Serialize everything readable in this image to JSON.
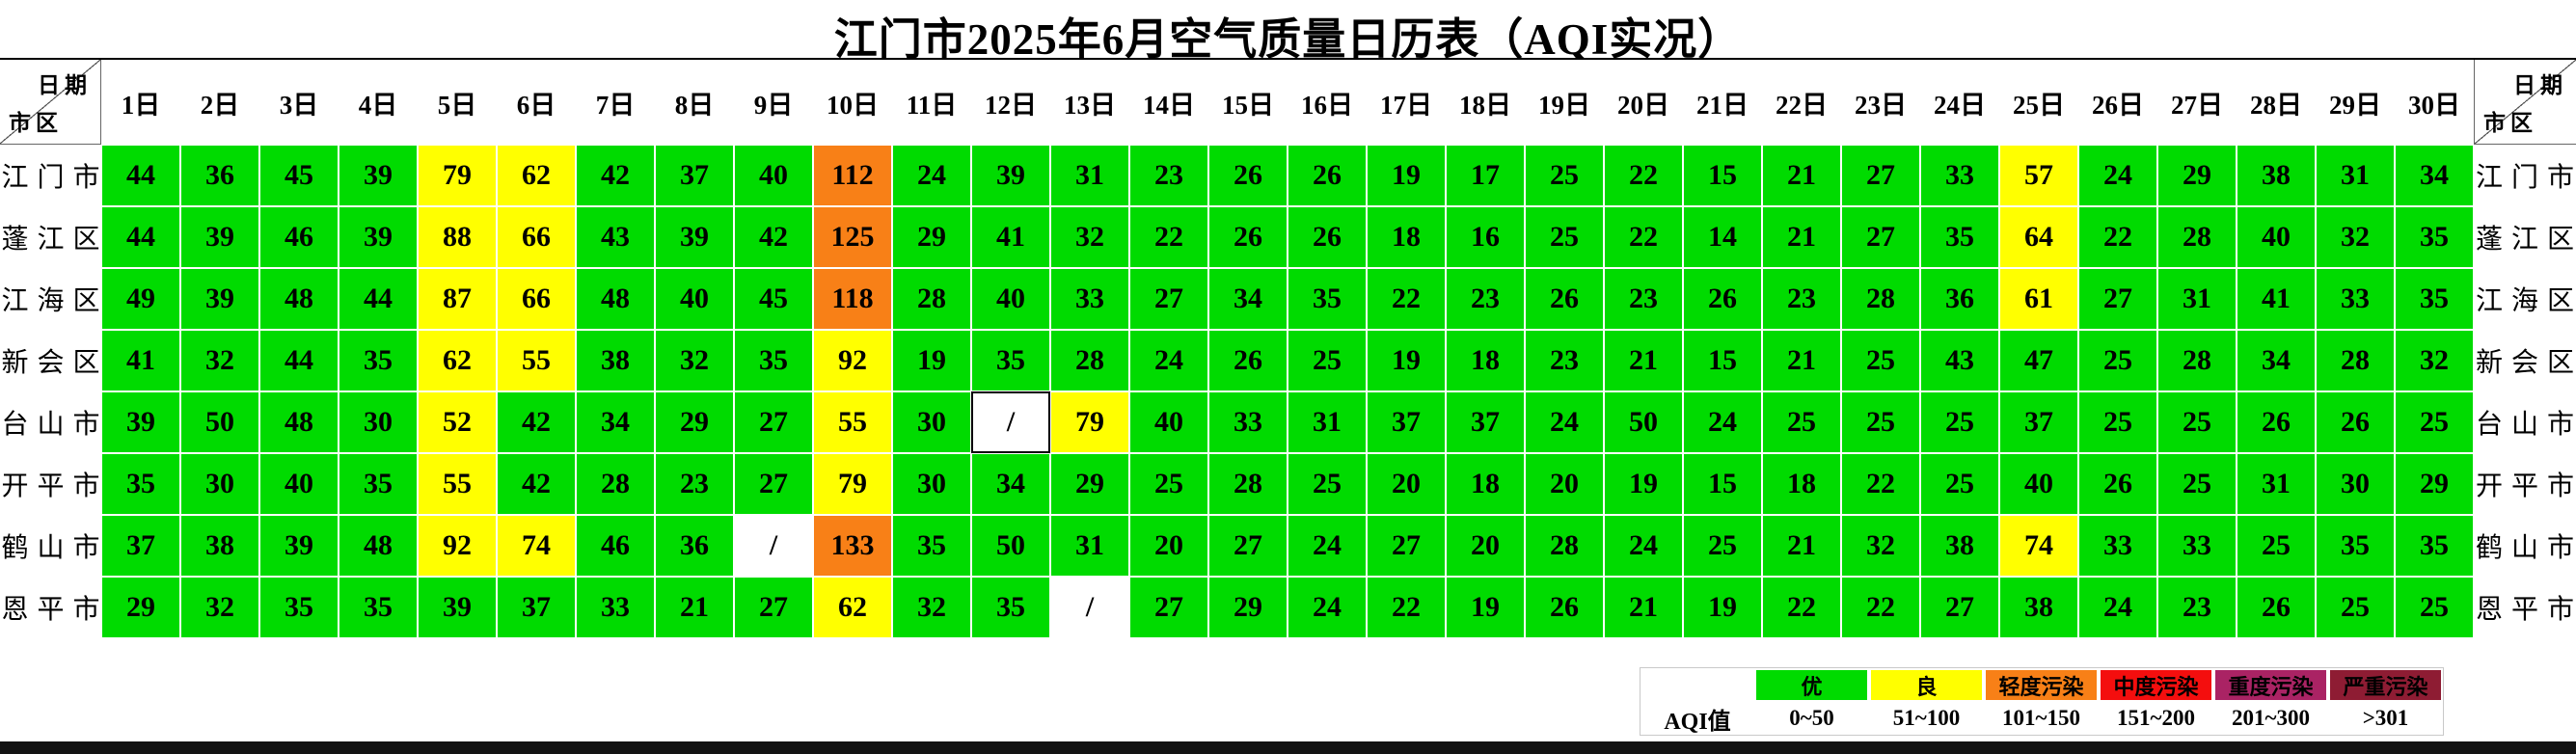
{
  "page": {
    "title": "江门市2025年6月空气质量日历表（AQI实况）"
  },
  "header": {
    "corner_top": "日期",
    "corner_bottom": "市区"
  },
  "chart_data": {
    "type": "heatmap",
    "title": "江门市2025年6月空气质量日历表（AQI实况）",
    "x_labels": [
      "1日",
      "2日",
      "3日",
      "4日",
      "5日",
      "6日",
      "7日",
      "8日",
      "9日",
      "10日",
      "11日",
      "12日",
      "13日",
      "14日",
      "15日",
      "16日",
      "17日",
      "18日",
      "19日",
      "20日",
      "21日",
      "22日",
      "23日",
      "24日",
      "25日",
      "26日",
      "27日",
      "28日",
      "29日",
      "30日"
    ],
    "row_labels": [
      "江门市",
      "蓬江区",
      "江海区",
      "新会区",
      "台山市",
      "开平市",
      "鹤山市",
      "恩平市"
    ],
    "values": [
      [
        44,
        36,
        45,
        39,
        79,
        62,
        42,
        37,
        40,
        112,
        24,
        39,
        31,
        23,
        26,
        26,
        19,
        17,
        25,
        22,
        15,
        21,
        27,
        33,
        57,
        24,
        29,
        38,
        31,
        34
      ],
      [
        44,
        39,
        46,
        39,
        88,
        66,
        43,
        39,
        42,
        125,
        29,
        41,
        32,
        22,
        26,
        26,
        18,
        16,
        25,
        22,
        14,
        21,
        27,
        35,
        64,
        22,
        28,
        40,
        32,
        35
      ],
      [
        49,
        39,
        48,
        44,
        87,
        66,
        48,
        40,
        45,
        118,
        28,
        40,
        33,
        27,
        34,
        35,
        22,
        23,
        26,
        23,
        26,
        23,
        28,
        36,
        61,
        27,
        31,
        41,
        33,
        35
      ],
      [
        41,
        32,
        44,
        35,
        62,
        55,
        38,
        32,
        35,
        92,
        19,
        35,
        28,
        24,
        26,
        25,
        19,
        18,
        23,
        21,
        15,
        21,
        25,
        43,
        47,
        25,
        28,
        34,
        28,
        32
      ],
      [
        39,
        50,
        48,
        30,
        52,
        42,
        34,
        29,
        27,
        55,
        30,
        null,
        79,
        40,
        33,
        31,
        37,
        37,
        24,
        50,
        24,
        25,
        25,
        25,
        37,
        25,
        25,
        26,
        26,
        25
      ],
      [
        35,
        30,
        40,
        35,
        55,
        42,
        28,
        23,
        27,
        79,
        30,
        34,
        29,
        25,
        28,
        25,
        20,
        18,
        20,
        19,
        15,
        18,
        22,
        25,
        40,
        26,
        25,
        31,
        30,
        29
      ],
      [
        37,
        38,
        39,
        48,
        92,
        74,
        46,
        36,
        null,
        133,
        35,
        50,
        31,
        20,
        27,
        24,
        27,
        20,
        28,
        24,
        25,
        21,
        32,
        38,
        74,
        33,
        33,
        25,
        35,
        35
      ],
      [
        29,
        32,
        35,
        35,
        39,
        37,
        33,
        21,
        27,
        62,
        32,
        35,
        null,
        27,
        29,
        24,
        22,
        19,
        26,
        21,
        19,
        22,
        22,
        27,
        38,
        24,
        23,
        26,
        25,
        25
      ]
    ],
    "missing_marker": "/",
    "legend_label": "AQI值",
    "color_scale": [
      {
        "label": "优",
        "range": "0~50",
        "min": 0,
        "max": 50,
        "color": "#00DB00"
      },
      {
        "label": "良",
        "range": "51~100",
        "min": 51,
        "max": 100,
        "color": "#FFFF00"
      },
      {
        "label": "轻度污染",
        "range": "101~150",
        "min": 101,
        "max": 150,
        "color": "#F88017"
      },
      {
        "label": "中度污染",
        "range": "151~200",
        "min": 151,
        "max": 200,
        "color": "#F40E0E"
      },
      {
        "label": "重度污染",
        "range": "201~300",
        "min": 201,
        "max": 300,
        "color": "#AA2364"
      },
      {
        "label": "严重污染",
        "range": ">301",
        "min": 301,
        "max": null,
        "color": "#8E1C33"
      }
    ]
  },
  "selected_cell": {
    "row_index": 4,
    "col_index": 11
  },
  "colors": {
    "missing_cell": "#FFFFFF",
    "cell_gap": "#FFFFFF",
    "selected_border": "#000000",
    "header_line": "#000000",
    "footer_bar": "#131313"
  }
}
